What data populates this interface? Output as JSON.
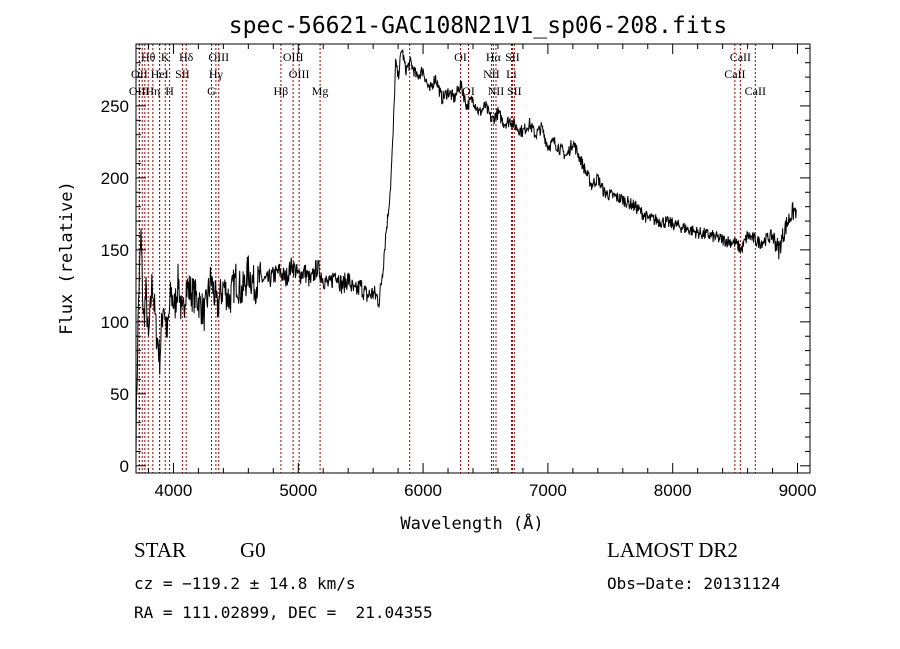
{
  "chart_data": {
    "type": "line",
    "title": "spec-56621-GAC108N21V1_sp06-208.fits",
    "xlabel": "Wavelength (Å)",
    "ylabel": "Flux (relative)",
    "xlim": [
      3700,
      9100
    ],
    "ylim": [
      -5,
      293
    ],
    "x_ticks": [
      4000,
      5000,
      6000,
      7000,
      8000,
      9000
    ],
    "x_tick_labels": [
      "4000",
      "5000",
      "6000",
      "7000",
      "8000",
      "9000"
    ],
    "y_ticks": [
      0,
      50,
      100,
      150,
      200,
      250
    ],
    "y_tick_labels": [
      "0",
      "50",
      "100",
      "150",
      "200",
      "250"
    ],
    "grid": false,
    "series": [
      {
        "color": "#000000",
        "x": [
          3700,
          3720,
          3740,
          3760,
          3780,
          3800,
          3830,
          3860,
          3890,
          3920,
          3950,
          3980,
          4010,
          4040,
          4070,
          4100,
          4150,
          4200,
          4250,
          4300,
          4350,
          4400,
          4450,
          4500,
          4550,
          4600,
          4650,
          4700,
          4750,
          4800,
          4850,
          4900,
          4950,
          5000,
          5050,
          5100,
          5150,
          5200,
          5250,
          5300,
          5350,
          5400,
          5450,
          5500,
          5550,
          5600,
          5650,
          5680,
          5700,
          5720,
          5740,
          5760,
          5780,
          5800,
          5830,
          5860,
          5900,
          5950,
          6000,
          6050,
          6100,
          6150,
          6200,
          6250,
          6300,
          6350,
          6400,
          6450,
          6500,
          6550,
          6600,
          6650,
          6700,
          6750,
          6800,
          6850,
          6900,
          6950,
          7000,
          7050,
          7100,
          7150,
          7200,
          7250,
          7300,
          7350,
          7400,
          7450,
          7500,
          7600,
          7700,
          7800,
          7900,
          8000,
          8100,
          8200,
          8300,
          8400,
          8500,
          8550,
          8600,
          8700,
          8800,
          8850,
          8900,
          8950,
          8990
        ],
        "y": [
          20,
          115,
          160,
          100,
          120,
          85,
          130,
          95,
          75,
          115,
          90,
          120,
          110,
          130,
          100,
          125,
          120,
          115,
          105,
          130,
          110,
          125,
          115,
          130,
          120,
          135,
          125,
          130,
          128,
          132,
          135,
          130,
          140,
          132,
          135,
          128,
          138,
          130,
          125,
          135,
          125,
          130,
          120,
          125,
          118,
          120,
          115,
          140,
          160,
          175,
          195,
          230,
          280,
          270,
          290,
          275,
          280,
          270,
          275,
          260,
          270,
          255,
          260,
          255,
          265,
          250,
          255,
          245,
          250,
          240,
          245,
          238,
          240,
          235,
          232,
          238,
          230,
          235,
          222,
          225,
          220,
          215,
          225,
          215,
          205,
          195,
          200,
          190,
          188,
          185,
          180,
          172,
          170,
          168,
          165,
          162,
          160,
          157,
          155,
          150,
          160,
          155,
          160,
          150,
          165,
          175,
          178
        ]
      }
    ],
    "spectral_lines": [
      {
        "label": "Hθ",
        "wavelength": 3798,
        "row": 0
      },
      {
        "label": "K",
        "wavelength": 3934,
        "row": 0
      },
      {
        "label": "Hδ",
        "wavelength": 4102,
        "row": 0
      },
      {
        "label": "OIII",
        "wavelength": 4363,
        "row": 0
      },
      {
        "label": "OIII",
        "wavelength": 4959,
        "row": 0
      },
      {
        "label": "OI",
        "wavelength": 6300,
        "row": 0
      },
      {
        "label": "Hα",
        "wavelength": 6563,
        "row": 0
      },
      {
        "label": "SII",
        "wavelength": 6716,
        "row": 0
      },
      {
        "label": "CaII",
        "wavelength": 8542,
        "row": 0
      },
      {
        "label": "OII",
        "wavelength": 3727,
        "row": 1
      },
      {
        "label": "HeI",
        "wavelength": 3889,
        "row": 1
      },
      {
        "label": "SII",
        "wavelength": 4072,
        "row": 1
      },
      {
        "label": "Hγ",
        "wavelength": 4340,
        "row": 1
      },
      {
        "label": "OIII",
        "wavelength": 5007,
        "row": 1
      },
      {
        "label": "NII",
        "wavelength": 6548,
        "row": 1
      },
      {
        "label": "Li",
        "wavelength": 6708,
        "row": 1
      },
      {
        "label": "CaII",
        "wavelength": 8498,
        "row": 1
      },
      {
        "label": "OIII",
        "wavelength": 3726,
        "row": 2
      },
      {
        "label": "Hη",
        "wavelength": 3835,
        "row": 2
      },
      {
        "label": "H",
        "wavelength": 3969,
        "row": 2
      },
      {
        "label": "G",
        "wavelength": 4305,
        "row": 2
      },
      {
        "label": "Hβ",
        "wavelength": 4861,
        "row": 2
      },
      {
        "label": "Mg",
        "wavelength": 5175,
        "row": 2
      },
      {
        "label": "OI",
        "wavelength": 6364,
        "row": 2
      },
      {
        "label": "NII",
        "wavelength": 6584,
        "row": 2
      },
      {
        "label": "SII",
        "wavelength": 6731,
        "row": 2
      },
      {
        "label": "CaII",
        "wavelength": 8662,
        "row": 2
      }
    ],
    "extra_line_markers": [
      3750,
      3771,
      3889,
      5893
    ],
    "line_marker_color": "#a00000"
  },
  "info": {
    "object_class": "STAR",
    "subclass": "G0",
    "survey": "LAMOST DR2",
    "redshift_text": "cz = −119.2 ± 14.8 km/s",
    "obs_date": "Obs−Date: 20131124",
    "coords": "RA = 111.02899, DEC =  21.04355"
  }
}
